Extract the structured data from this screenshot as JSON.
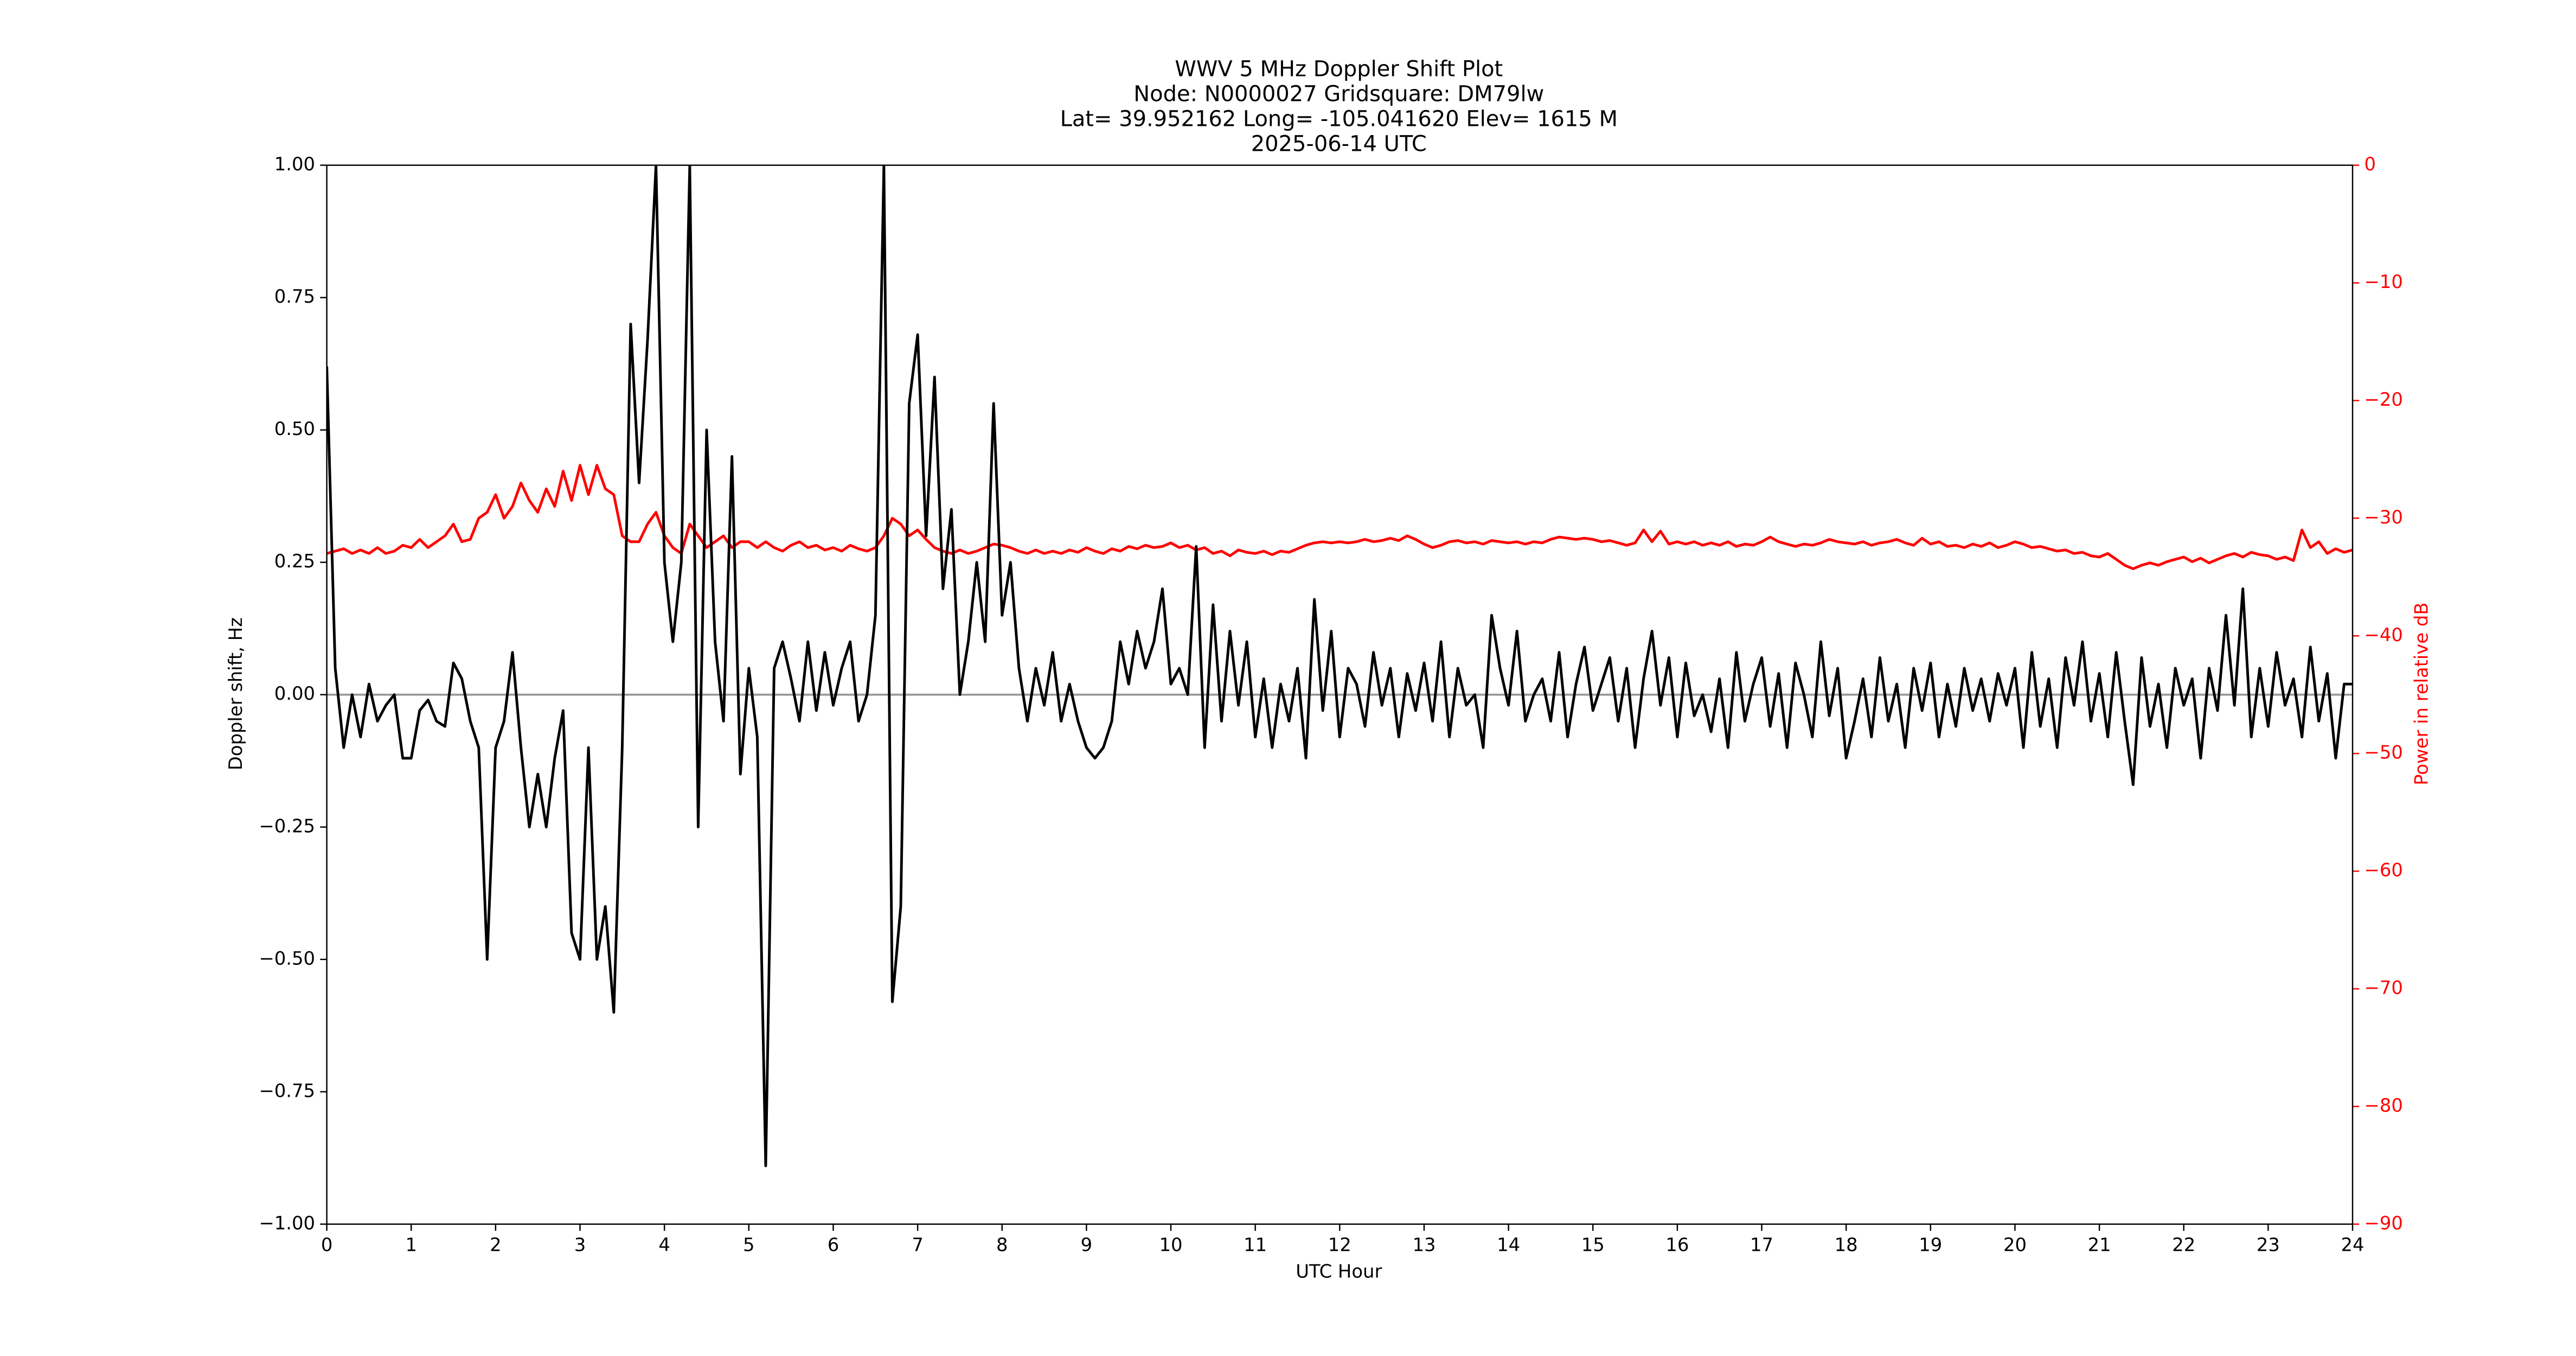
{
  "chart_data": {
    "type": "line",
    "title_lines": [
      "WWV 5 MHz Doppler Shift Plot",
      "Node:  N0000027     Gridsquare:  DM79lw",
      "Lat= 39.952162    Long= -105.041620    Elev= 1615 M",
      "2025-06-14  UTC"
    ],
    "x_label": "UTC Hour",
    "y_label": "Doppler shift, Hz",
    "y2_label": "Power in relative dB",
    "xlim": [
      0,
      24
    ],
    "xticks": [
      0,
      1,
      2,
      3,
      4,
      5,
      6,
      7,
      8,
      9,
      10,
      11,
      12,
      13,
      14,
      15,
      16,
      17,
      18,
      19,
      20,
      21,
      22,
      23,
      24
    ],
    "ylim": [
      -1,
      1
    ],
    "yticks": [
      {
        "value": -1,
        "label": "−1.00"
      },
      {
        "value": -0.75,
        "label": "−0.75"
      },
      {
        "value": -0.5,
        "label": "−0.50"
      },
      {
        "value": -0.25,
        "label": "−0.25"
      },
      {
        "value": 0,
        "label": "0.00"
      },
      {
        "value": 0.25,
        "label": "0.25"
      },
      {
        "value": 0.5,
        "label": "0.50"
      },
      {
        "value": 0.75,
        "label": "0.75"
      },
      {
        "value": 1,
        "label": "1.00"
      }
    ],
    "y2lim": [
      -90,
      0
    ],
    "y2ticks": [
      {
        "value": -90,
        "label": "−90"
      },
      {
        "value": -80,
        "label": "−80"
      },
      {
        "value": -70,
        "label": "−70"
      },
      {
        "value": -60,
        "label": "−60"
      },
      {
        "value": -50,
        "label": "−50"
      },
      {
        "value": -40,
        "label": "−40"
      },
      {
        "value": -30,
        "label": "−30"
      },
      {
        "value": -20,
        "label": "−20"
      },
      {
        "value": -10,
        "label": "−10"
      },
      0
    ],
    "hline": 0,
    "hline_color": "#999999",
    "x": [
      0,
      0.1,
      0.2,
      0.3,
      0.4,
      0.5,
      0.6,
      0.7,
      0.8,
      0.9,
      1,
      1.1,
      1.2,
      1.3,
      1.4,
      1.5,
      1.6,
      1.7,
      1.8,
      1.9,
      2,
      2.1,
      2.2,
      2.3,
      2.4,
      2.5,
      2.6,
      2.7,
      2.8,
      2.9,
      3,
      3.1,
      3.2,
      3.3,
      3.4,
      3.5,
      3.6,
      3.7,
      3.8,
      3.9,
      4,
      4.1,
      4.2,
      4.3,
      4.4,
      4.5,
      4.6,
      4.7,
      4.8,
      4.9,
      5,
      5.1,
      5.2,
      5.3,
      5.4,
      5.5,
      5.6,
      5.7,
      5.8,
      5.9,
      6,
      6.1,
      6.2,
      6.3,
      6.4,
      6.5,
      6.6,
      6.7,
      6.8,
      6.9,
      7,
      7.1,
      7.2,
      7.3,
      7.4,
      7.5,
      7.6,
      7.7,
      7.8,
      7.9,
      8,
      8.1,
      8.2,
      8.3,
      8.4,
      8.5,
      8.6,
      8.7,
      8.8,
      8.9,
      9,
      9.1,
      9.2,
      9.3,
      9.4,
      9.5,
      9.6,
      9.7,
      9.8,
      9.9,
      10,
      10.1,
      10.2,
      10.3,
      10.4,
      10.5,
      10.6,
      10.7,
      10.8,
      10.9,
      11,
      11.1,
      11.2,
      11.3,
      11.4,
      11.5,
      11.6,
      11.7,
      11.8,
      11.9,
      12,
      12.1,
      12.2,
      12.3,
      12.4,
      12.5,
      12.6,
      12.7,
      12.8,
      12.9,
      13,
      13.1,
      13.2,
      13.3,
      13.4,
      13.5,
      13.6,
      13.7,
      13.8,
      13.9,
      14,
      14.1,
      14.2,
      14.3,
      14.4,
      14.5,
      14.6,
      14.7,
      14.8,
      14.9,
      15,
      15.1,
      15.2,
      15.3,
      15.4,
      15.5,
      15.6,
      15.7,
      15.8,
      15.9,
      16,
      16.1,
      16.2,
      16.3,
      16.4,
      16.5,
      16.6,
      16.7,
      16.8,
      16.9,
      17,
      17.1,
      17.2,
      17.3,
      17.4,
      17.5,
      17.6,
      17.7,
      17.8,
      17.9,
      18,
      18.1,
      18.2,
      18.3,
      18.4,
      18.5,
      18.6,
      18.7,
      18.8,
      18.9,
      19,
      19.1,
      19.2,
      19.3,
      19.4,
      19.5,
      19.6,
      19.7,
      19.8,
      19.9,
      20,
      20.1,
      20.2,
      20.3,
      20.4,
      20.5,
      20.6,
      20.7,
      20.8,
      20.9,
      21,
      21.1,
      21.2,
      21.3,
      21.4,
      21.5,
      21.6,
      21.7,
      21.8,
      21.9,
      22,
      22.1,
      22.2,
      22.3,
      22.4,
      22.5,
      22.6,
      22.7,
      22.8,
      22.9,
      23,
      23.1,
      23.2,
      23.3,
      23.4,
      23.5,
      23.6,
      23.7,
      23.8,
      23.9,
      24
    ],
    "series": [
      {
        "name": "Doppler shift",
        "color": "#000000",
        "values": [
          0.62,
          0.05,
          -0.1,
          0.0,
          -0.08,
          0.02,
          -0.05,
          -0.02,
          0.0,
          -0.12,
          -0.12,
          -0.03,
          -0.01,
          -0.05,
          -0.06,
          0.06,
          0.03,
          -0.05,
          -0.1,
          -0.5,
          -0.1,
          -0.05,
          0.08,
          -0.1,
          -0.25,
          -0.15,
          -0.25,
          -0.12,
          -0.03,
          -0.45,
          -0.5,
          -0.1,
          -0.5,
          -0.4,
          -0.6,
          -0.1,
          0.7,
          0.4,
          0.67,
          1.0,
          0.25,
          0.1,
          0.25,
          1.0,
          -0.25,
          0.5,
          0.1,
          -0.05,
          0.45,
          -0.15,
          0.05,
          -0.08,
          -0.89,
          0.05,
          0.1,
          0.03,
          -0.05,
          0.1,
          -0.03,
          0.08,
          -0.02,
          0.05,
          0.1,
          -0.05,
          0.0,
          0.15,
          1.0,
          -0.58,
          -0.4,
          0.55,
          0.68,
          0.3,
          0.6,
          0.2,
          0.35,
          0.0,
          0.1,
          0.25,
          0.1,
          0.55,
          0.15,
          0.25,
          0.05,
          -0.05,
          0.05,
          -0.02,
          0.08,
          -0.05,
          0.02,
          -0.05,
          -0.1,
          -0.12,
          -0.1,
          -0.05,
          0.1,
          0.02,
          0.12,
          0.05,
          0.1,
          0.2,
          0.02,
          0.05,
          0.0,
          0.28,
          -0.1,
          0.17,
          -0.05,
          0.12,
          -0.02,
          0.1,
          -0.08,
          0.03,
          -0.1,
          0.02,
          -0.05,
          0.05,
          -0.12,
          0.18,
          -0.03,
          0.12,
          -0.08,
          0.05,
          0.02,
          -0.06,
          0.08,
          -0.02,
          0.05,
          -0.08,
          0.04,
          -0.03,
          0.06,
          -0.05,
          0.1,
          -0.08,
          0.05,
          -0.02,
          0.0,
          -0.1,
          0.15,
          0.05,
          -0.02,
          0.12,
          -0.05,
          0.0,
          0.03,
          -0.05,
          0.08,
          -0.08,
          0.02,
          0.09,
          -0.03,
          0.02,
          0.07,
          -0.05,
          0.05,
          -0.1,
          0.03,
          0.12,
          -0.02,
          0.07,
          -0.08,
          0.06,
          -0.04,
          0.0,
          -0.07,
          0.03,
          -0.1,
          0.08,
          -0.05,
          0.02,
          0.07,
          -0.06,
          0.04,
          -0.1,
          0.06,
          0.0,
          -0.08,
          0.1,
          -0.04,
          0.05,
          -0.12,
          -0.05,
          0.03,
          -0.08,
          0.07,
          -0.05,
          0.02,
          -0.1,
          0.05,
          -0.03,
          0.06,
          -0.08,
          0.02,
          -0.06,
          0.05,
          -0.03,
          0.03,
          -0.05,
          0.04,
          -0.02,
          0.05,
          -0.1,
          0.08,
          -0.06,
          0.03,
          -0.1,
          0.07,
          -0.02,
          0.1,
          -0.05,
          0.04,
          -0.08,
          0.08,
          -0.05,
          -0.17,
          0.07,
          -0.06,
          0.02,
          -0.1,
          0.05,
          -0.02,
          0.03,
          -0.12,
          0.05,
          -0.03,
          0.15,
          -0.02,
          0.2,
          -0.08,
          0.05,
          -0.06,
          0.08,
          -0.02,
          0.03,
          -0.08,
          0.09,
          -0.05,
          0.04,
          -0.12,
          0.02,
          0.02
        ]
      },
      {
        "name": "Power",
        "color": "#ff0000",
        "axis": "y2",
        "values": [
          -33,
          -32.8,
          -32.6,
          -33,
          -32.7,
          -33,
          -32.5,
          -33,
          -32.8,
          -32.3,
          -32.5,
          -31.8,
          -32.5,
          -32,
          -31.5,
          -30.5,
          -32,
          -31.8,
          -30,
          -29.5,
          -28,
          -30,
          -29,
          -27,
          -28.5,
          -29.5,
          -27.5,
          -29,
          -26,
          -28.5,
          -25.5,
          -28,
          -25.5,
          -27.5,
          -28,
          -31.5,
          -32,
          -32,
          -30.5,
          -29.5,
          -31.5,
          -32.5,
          -33,
          -30.5,
          -31.5,
          -32.5,
          -32,
          -31.5,
          -32.5,
          -32,
          -32,
          -32.5,
          -32,
          -32.5,
          -32.8,
          -32.3,
          -32,
          -32.5,
          -32.3,
          -32.7,
          -32.5,
          -32.8,
          -32.3,
          -32.6,
          -32.8,
          -32.5,
          -31.5,
          -30,
          -30.5,
          -31.5,
          -31,
          -31.8,
          -32.5,
          -32.8,
          -33,
          -32.7,
          -33,
          -32.8,
          -32.5,
          -32.2,
          -32.3,
          -32.5,
          -32.8,
          -33,
          -32.7,
          -33,
          -32.8,
          -33,
          -32.7,
          -32.9,
          -32.5,
          -32.8,
          -33,
          -32.6,
          -32.8,
          -32.4,
          -32.6,
          -32.3,
          -32.5,
          -32.4,
          -32.1,
          -32.5,
          -32.3,
          -32.7,
          -32.5,
          -33,
          -32.8,
          -33.2,
          -32.7,
          -32.9,
          -33,
          -32.8,
          -33.1,
          -32.8,
          -32.9,
          -32.6,
          -32.3,
          -32.1,
          -32,
          -32.1,
          -32,
          -32.1,
          -32,
          -31.8,
          -32,
          -31.9,
          -31.7,
          -31.9,
          -31.5,
          -31.8,
          -32.2,
          -32.5,
          -32.3,
          -32,
          -31.9,
          -32.1,
          -32,
          -32.2,
          -31.9,
          -32,
          -32.1,
          -32,
          -32.2,
          -32,
          -32.1,
          -31.8,
          -31.6,
          -31.7,
          -31.8,
          -31.7,
          -31.8,
          -32,
          -31.9,
          -32.1,
          -32.3,
          -32.1,
          -31,
          -32,
          -31.1,
          -32.2,
          -32,
          -32.2,
          -32,
          -32.3,
          -32.1,
          -32.3,
          -32,
          -32.4,
          -32.2,
          -32.3,
          -32,
          -31.6,
          -32,
          -32.2,
          -32.4,
          -32.2,
          -32.3,
          -32.1,
          -31.8,
          -32,
          -32.1,
          -32.2,
          -32,
          -32.3,
          -32.1,
          -32,
          -31.8,
          -32.1,
          -32.3,
          -31.7,
          -32.2,
          -32,
          -32.4,
          -32.3,
          -32.5,
          -32.2,
          -32.4,
          -32.1,
          -32.5,
          -32.3,
          -32,
          -32.2,
          -32.5,
          -32.4,
          -32.6,
          -32.8,
          -32.7,
          -33,
          -32.9,
          -33.2,
          -33.3,
          -33,
          -33.5,
          -34,
          -34.3,
          -34,
          -33.8,
          -34,
          -33.7,
          -33.5,
          -33.3,
          -33.7,
          -33.4,
          -33.8,
          -33.5,
          -33.2,
          -33,
          -33.3,
          -32.9,
          -33.1,
          -33.2,
          -33.5,
          -33.3,
          -33.6,
          -31,
          -32.5,
          -32,
          -33,
          -32.6,
          -32.9,
          -32.7
        ]
      }
    ]
  }
}
